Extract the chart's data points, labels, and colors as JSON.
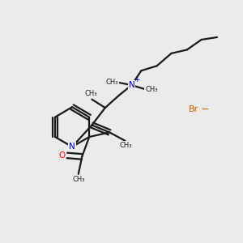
{
  "bg_color": "#ebebeb",
  "bond_color": "#1a1a1a",
  "nitrogen_color": "#0000cc",
  "oxygen_color": "#ff0000",
  "bromine_color": "#cc6600",
  "line_width": 1.6,
  "fig_width": 3.0,
  "fig_height": 3.0,
  "dpi": 100,
  "xlim": [
    0,
    10
  ],
  "ylim": [
    0,
    10
  ]
}
